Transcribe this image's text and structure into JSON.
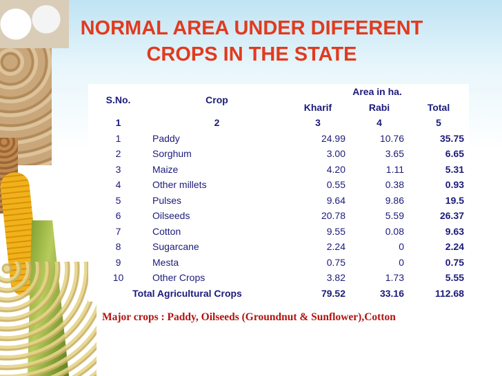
{
  "title": "NORMAL AREA UNDER DIFFERENT CROPS IN THE STATE",
  "header": {
    "sno": "S.No.",
    "crop": "Crop",
    "area_group": "Area in ha.",
    "kharif": "Kharif",
    "rabi": "Rabi",
    "total": "Total"
  },
  "index_row": [
    "1",
    "2",
    "3",
    "4",
    "5"
  ],
  "rows": [
    {
      "sno": "1",
      "crop": "Paddy",
      "kharif": "24.99",
      "rabi": "10.76",
      "total": "35.75"
    },
    {
      "sno": "2",
      "crop": "Sorghum",
      "kharif": "3.00",
      "rabi": "3.65",
      "total": "6.65"
    },
    {
      "sno": "3",
      "crop": "Maize",
      "kharif": "4.20",
      "rabi": "1.11",
      "total": "5.31"
    },
    {
      "sno": "4",
      "crop": "Other millets",
      "kharif": "0.55",
      "rabi": "0.38",
      "total": "0.93"
    },
    {
      "sno": "5",
      "crop": "Pulses",
      "kharif": "9.64",
      "rabi": "9.86",
      "total": "19.5"
    },
    {
      "sno": "6",
      "crop": "Oilseeds",
      "kharif": "20.78",
      "rabi": "5.59",
      "total": "26.37"
    },
    {
      "sno": "7",
      "crop": "Cotton",
      "kharif": "9.55",
      "rabi": "0.08",
      "total": "9.63"
    },
    {
      "sno": "8",
      "crop": "Sugarcane",
      "kharif": "2.24",
      "rabi": "0",
      "total": "2.24"
    },
    {
      "sno": "9",
      "crop": "Mesta",
      "kharif": "0.75",
      "rabi": "0",
      "total": "0.75"
    },
    {
      "sno": "10",
      "crop": "Other Crops",
      "kharif": "3.82",
      "rabi": "1.73",
      "total": "5.55"
    }
  ],
  "total_row": {
    "label": "Total Agricultural Crops",
    "kharif": "79.52",
    "rabi": "33.16",
    "total": "112.68"
  },
  "note": "Major crops : Paddy, Oilseeds (Groundnut & Sunflower),Cotton",
  "colors": {
    "title": "#e23a1e",
    "table_text": "#1a1a7a",
    "note": "#b1130f"
  }
}
